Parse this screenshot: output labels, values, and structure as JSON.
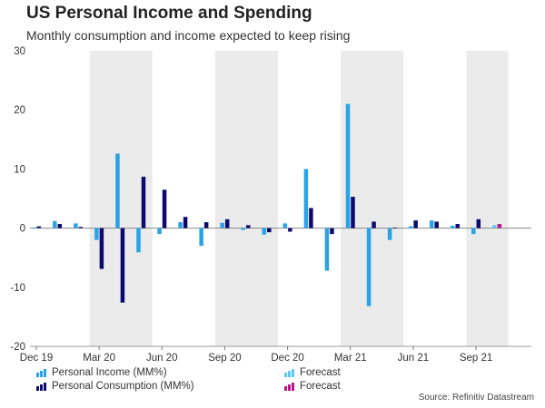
{
  "chart_data": {
    "type": "bar",
    "title": "US Personal Income and Spending",
    "subtitle": "Monthly consumption and income expected to keep rising",
    "source": "Source: Refinitiv Datastream",
    "ylim": [
      -20,
      30
    ],
    "yticks": [
      "30",
      "20",
      "10",
      "0",
      "-10",
      "-20"
    ],
    "ytick_values": [
      30,
      20,
      10,
      0,
      -10,
      -20
    ],
    "xtick_labels": [
      {
        "label": "Dec 19",
        "index": 0
      },
      {
        "label": "Mar 20",
        "index": 3
      },
      {
        "label": "Jun 20",
        "index": 6
      },
      {
        "label": "Sep 20",
        "index": 9
      },
      {
        "label": "Dec 20",
        "index": 12
      },
      {
        "label": "Mar 21",
        "index": 15
      },
      {
        "label": "Jun 21",
        "index": 18
      },
      {
        "label": "Sep 21",
        "index": 21
      }
    ],
    "categories": [
      "Dec 19",
      "Jan 20",
      "Feb 20",
      "Mar 20",
      "Apr 20",
      "May 20",
      "Jun 20",
      "Jul 20",
      "Aug 20",
      "Sep 20",
      "Oct 20",
      "Nov 20",
      "Dec 20",
      "Jan 21",
      "Feb 21",
      "Mar 21",
      "Apr 21",
      "May 21",
      "Jun 21",
      "Jul 21",
      "Aug 21",
      "Sep 21",
      "Oct 21"
    ],
    "shaded_bands": [
      [
        3,
        5
      ],
      [
        9,
        11
      ],
      [
        15,
        17
      ],
      [
        21,
        22
      ]
    ],
    "series": [
      {
        "name": "Personal Income (MM%)",
        "color": "#29a3e6",
        "values": [
          0.1,
          1.2,
          0.8,
          -2.0,
          12.6,
          -4.1,
          -1.0,
          1.0,
          -3.0,
          0.9,
          -0.3,
          -1.1,
          0.8,
          10.0,
          -7.2,
          21.0,
          -13.2,
          -2.0,
          0.3,
          1.3,
          0.4,
          -1.0,
          0.5
        ]
      },
      {
        "name": "Personal Consumption (MM%)",
        "color": "#0c0a6e",
        "values": [
          0.3,
          0.7,
          0.2,
          -6.9,
          -12.6,
          8.7,
          6.5,
          1.9,
          1.0,
          1.5,
          0.5,
          -0.7,
          -0.6,
          3.4,
          -1.0,
          5.3,
          1.1,
          0.1,
          1.3,
          1.1,
          0.7,
          1.5,
          0.7
        ]
      }
    ],
    "forecast_income": {
      "name": "Forecast",
      "color": "#5bc8f5",
      "index": 22,
      "value": 0.5
    },
    "forecast_consumption": {
      "name": "Forecast",
      "color": "#b5168a",
      "index": 22,
      "value": 0.7
    },
    "legend": [
      {
        "label": "Personal Income (MM%)",
        "color": "#29a3e6"
      },
      {
        "label": "Personal Consumption (MM%)",
        "color": "#0c0a6e"
      },
      {
        "label": "Forecast",
        "color": "#5bc8f5"
      },
      {
        "label": "Forecast",
        "color": "#b5168a"
      }
    ],
    "grid": false,
    "legend_position": "bottom"
  }
}
